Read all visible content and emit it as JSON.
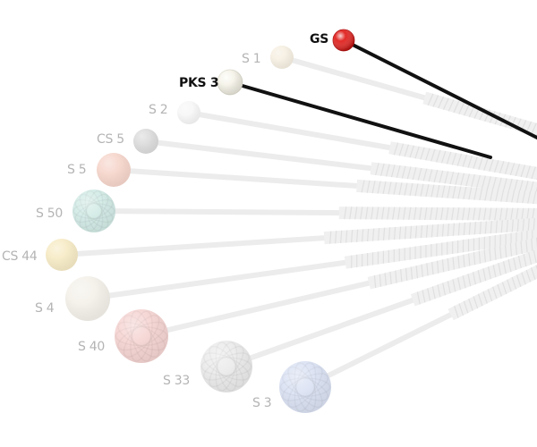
{
  "colors": {
    "background": "#ffffff",
    "faded_handle": "#ececec",
    "faded_grip": "#e0e0e0",
    "active_handle": "#111111",
    "faded_label": "#b4b4b4",
    "active_label": "#111111"
  },
  "mallets": [
    {
      "label": "GS",
      "head_color": "#e0201c",
      "highlighted": true,
      "icon": "red-glass-mallet"
    },
    {
      "label": "S 1",
      "head_color": "#f6efe2",
      "highlighted": false,
      "icon": "mallet"
    },
    {
      "label": "PKS 3",
      "head_color": "#f4f2e6",
      "highlighted": true,
      "icon": "white-plastic-mallet"
    },
    {
      "label": "S 2",
      "head_color": "#f7f7f7",
      "highlighted": false,
      "icon": "mallet"
    },
    {
      "label": "CS 5",
      "head_color": "#dcdcdc",
      "highlighted": false,
      "icon": "mallet"
    },
    {
      "label": "S 5",
      "head_color": "#f6d6cc",
      "highlighted": false,
      "icon": "mallet"
    },
    {
      "label": "S 50",
      "head_color": "#d3ebe6",
      "highlighted": false,
      "icon": "yarn-mallet"
    },
    {
      "label": "CS 44",
      "head_color": "#f7ebc6",
      "highlighted": false,
      "icon": "mallet"
    },
    {
      "label": "S 4",
      "head_color": "#f4f1ea",
      "highlighted": false,
      "icon": "mallet"
    },
    {
      "label": "S 40",
      "head_color": "#f5d5d3",
      "highlighted": false,
      "icon": "yarn-mallet"
    },
    {
      "label": "S 33",
      "head_color": "#ebebeb",
      "highlighted": false,
      "icon": "yarn-mallet"
    },
    {
      "label": "S 3",
      "head_color": "#dbe2f3",
      "highlighted": false,
      "icon": "yarn-mallet"
    }
  ]
}
